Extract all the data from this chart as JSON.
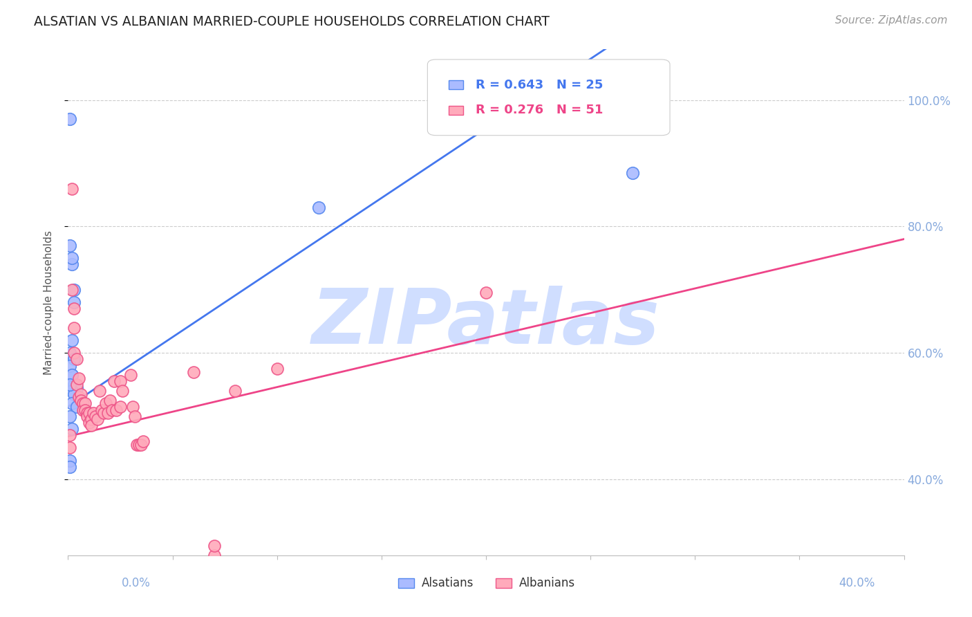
{
  "title": "ALSATIAN VS ALBANIAN MARRIED-COUPLE HOUSEHOLDS CORRELATION CHART",
  "source": "Source: ZipAtlas.com",
  "ylabel": "Married-couple Households",
  "ytick_labels": [
    "40.0%",
    "60.0%",
    "80.0%",
    "100.0%"
  ],
  "ytick_values": [
    0.4,
    0.6,
    0.8,
    1.0
  ],
  "xlim": [
    0.0,
    0.4
  ],
  "ylim": [
    0.28,
    1.08
  ],
  "watermark": "ZIPatlas",
  "alsatians_x": [
    0.001,
    0.002,
    0.002,
    0.001,
    0.003,
    0.003,
    0.002,
    0.001,
    0.003,
    0.002,
    0.003,
    0.004,
    0.002,
    0.003,
    0.002,
    0.001,
    0.004,
    0.001,
    0.12,
    0.002,
    0.001,
    0.27,
    0.001,
    0.001,
    0.002
  ],
  "alsatians_y": [
    0.97,
    0.74,
    0.75,
    0.77,
    0.7,
    0.68,
    0.62,
    0.6,
    0.59,
    0.565,
    0.55,
    0.545,
    0.54,
    0.535,
    0.52,
    0.58,
    0.515,
    0.5,
    0.83,
    0.565,
    0.55,
    0.885,
    0.43,
    0.42,
    0.48
  ],
  "albanians_x": [
    0.001,
    0.001,
    0.002,
    0.002,
    0.003,
    0.003,
    0.003,
    0.004,
    0.004,
    0.005,
    0.005,
    0.006,
    0.006,
    0.007,
    0.007,
    0.008,
    0.008,
    0.009,
    0.009,
    0.01,
    0.01,
    0.011,
    0.011,
    0.012,
    0.013,
    0.014,
    0.015,
    0.016,
    0.017,
    0.018,
    0.019,
    0.02,
    0.021,
    0.022,
    0.023,
    0.025,
    0.025,
    0.026,
    0.03,
    0.031,
    0.032,
    0.033,
    0.034,
    0.035,
    0.036,
    0.2,
    0.08,
    0.1,
    0.06,
    0.07,
    0.07
  ],
  "albanians_y": [
    0.47,
    0.45,
    0.86,
    0.7,
    0.67,
    0.64,
    0.6,
    0.59,
    0.55,
    0.56,
    0.53,
    0.535,
    0.525,
    0.52,
    0.51,
    0.52,
    0.51,
    0.505,
    0.5,
    0.505,
    0.49,
    0.495,
    0.485,
    0.505,
    0.5,
    0.495,
    0.54,
    0.51,
    0.505,
    0.52,
    0.505,
    0.525,
    0.51,
    0.555,
    0.51,
    0.515,
    0.555,
    0.54,
    0.565,
    0.515,
    0.5,
    0.455,
    0.455,
    0.455,
    0.46,
    0.695,
    0.54,
    0.575,
    0.57,
    0.28,
    0.295
  ],
  "blue_color": "#5588ee",
  "blue_fill": "#aabbff",
  "pink_color": "#ee5588",
  "pink_fill": "#ffaabb",
  "trend_blue": "#4477ee",
  "trend_pink": "#ee4488",
  "watermark_color": "#d0deff",
  "grid_color": "#cccccc",
  "axis_tick_color": "#88aadd",
  "title_color": "#222222",
  "legend_r_blue": "R = 0.643",
  "legend_n_blue": "N = 25",
  "legend_r_pink": "R = 0.276",
  "legend_n_pink": "N = 51",
  "legend_label_blue": "Alsatians",
  "legend_label_pink": "Albanians",
  "blue_trendline": {
    "slope": 2.2,
    "intercept": 0.515
  },
  "pink_trendline": {
    "slope": 0.78,
    "intercept": 0.468
  }
}
